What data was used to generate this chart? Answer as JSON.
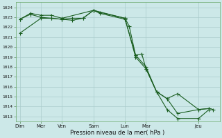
{
  "bg_color": "#cce8e8",
  "grid_color": "#aacccc",
  "line_color": "#1a5e20",
  "marker_color": "#1a5e20",
  "xlabel": "Pression niveau de la mer( hPa )",
  "ylim": [
    1012.5,
    1024.5
  ],
  "yticks": [
    1013,
    1014,
    1015,
    1016,
    1017,
    1018,
    1019,
    1020,
    1021,
    1022,
    1023,
    1024
  ],
  "xtick_labels": [
    "Dim",
    "Mer",
    "Ven",
    "Sam",
    "Lun",
    "Mar",
    "Jeu"
  ],
  "xtick_positions": [
    0,
    1,
    2,
    3.5,
    5,
    6,
    8.5
  ],
  "xlim": [
    -0.2,
    9.5
  ],
  "series1": [
    [
      0.0,
      1022.8
    ],
    [
      0.5,
      1023.3
    ],
    [
      1.0,
      1023.0
    ],
    [
      1.5,
      1022.9
    ],
    [
      2.0,
      1022.8
    ],
    [
      2.5,
      1022.9
    ],
    [
      3.0,
      1022.9
    ],
    [
      3.5,
      1023.7
    ],
    [
      3.8,
      1023.5
    ],
    [
      5.0,
      1022.9
    ],
    [
      5.2,
      1022.1
    ],
    [
      5.5,
      1019.2
    ],
    [
      5.8,
      1019.3
    ],
    [
      6.0,
      1017.8
    ],
    [
      6.5,
      1015.5
    ],
    [
      7.0,
      1014.8
    ],
    [
      7.5,
      1015.3
    ],
    [
      8.5,
      1013.7
    ],
    [
      9.0,
      1013.8
    ],
    [
      9.2,
      1013.7
    ]
  ],
  "series2": [
    [
      0.0,
      1022.8
    ],
    [
      0.5,
      1023.4
    ],
    [
      1.0,
      1023.2
    ],
    [
      1.5,
      1023.2
    ],
    [
      2.0,
      1022.9
    ],
    [
      3.5,
      1023.7
    ],
    [
      5.0,
      1022.9
    ],
    [
      5.5,
      1019.0
    ],
    [
      6.0,
      1017.8
    ],
    [
      6.5,
      1015.5
    ],
    [
      7.0,
      1013.7
    ],
    [
      7.5,
      1012.8
    ],
    [
      8.5,
      1012.8
    ],
    [
      9.0,
      1013.7
    ]
  ],
  "series3": [
    [
      0.0,
      1021.4
    ],
    [
      1.0,
      1022.9
    ],
    [
      1.5,
      1022.9
    ],
    [
      2.0,
      1022.8
    ],
    [
      2.5,
      1022.7
    ],
    [
      3.0,
      1022.9
    ],
    [
      3.5,
      1023.7
    ],
    [
      3.8,
      1023.4
    ],
    [
      5.0,
      1022.8
    ],
    [
      5.5,
      1019.2
    ],
    [
      6.0,
      1018.0
    ],
    [
      6.5,
      1015.5
    ],
    [
      7.0,
      1014.8
    ],
    [
      7.5,
      1013.3
    ],
    [
      8.5,
      1013.7
    ],
    [
      9.0,
      1013.8
    ]
  ]
}
